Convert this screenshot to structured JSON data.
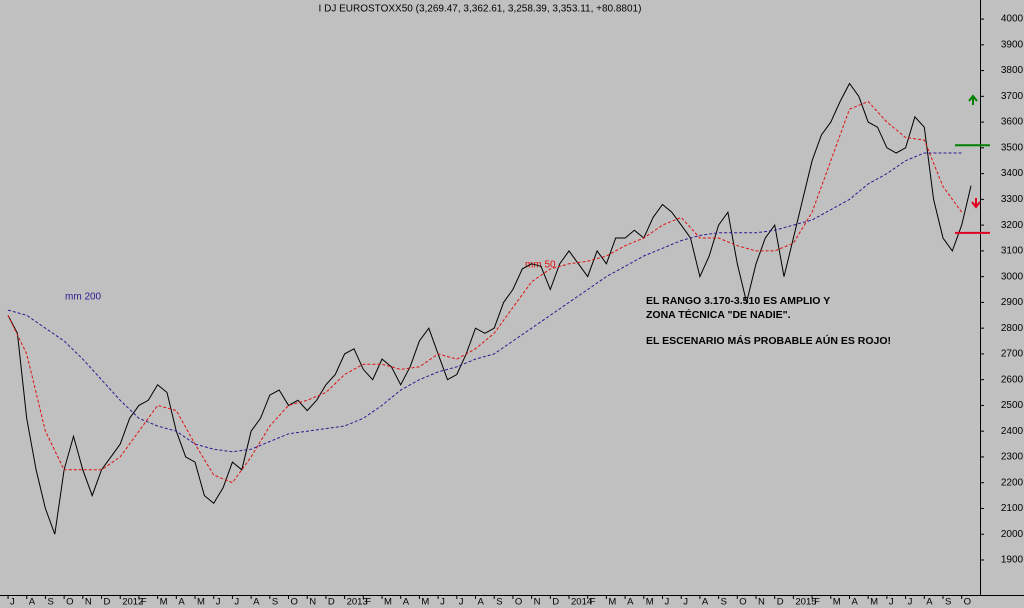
{
  "chart_data": {
    "type": "line",
    "title": "I DJ EUROSTOXX50 (3,269.47, 3,362.61, 3,258.39, 3,353.11, +80.8801)",
    "annotations": [
      "EL RANGO 3.170-3.510 ES AMPLIO Y",
      "ZONA TÉCNICA \"DE NADIE\".",
      "EL ESCENARIO MÁS PROBABLE AÚN ES ROJO!"
    ],
    "xlim": [
      -0.43,
      51.98
    ],
    "xticks": [
      {
        "value": 0,
        "label": "J"
      },
      {
        "value": 1,
        "label": "A"
      },
      {
        "value": 2,
        "label": "S"
      },
      {
        "value": 3,
        "label": "O"
      },
      {
        "value": 4,
        "label": "N"
      },
      {
        "value": 5,
        "label": "D"
      },
      {
        "value": 6,
        "label": "2012"
      },
      {
        "value": 7,
        "label": "F"
      },
      {
        "value": 8,
        "label": "M"
      },
      {
        "value": 9,
        "label": "A"
      },
      {
        "value": 10,
        "label": "M"
      },
      {
        "value": 11,
        "label": "J"
      },
      {
        "value": 12,
        "label": "J"
      },
      {
        "value": 13,
        "label": "A"
      },
      {
        "value": 14,
        "label": "S"
      },
      {
        "value": 15,
        "label": "O"
      },
      {
        "value": 16,
        "label": "N"
      },
      {
        "value": 17,
        "label": "D"
      },
      {
        "value": 18,
        "label": "2013"
      },
      {
        "value": 19,
        "label": "F"
      },
      {
        "value": 20,
        "label": "M"
      },
      {
        "value": 21,
        "label": "A"
      },
      {
        "value": 22,
        "label": "M"
      },
      {
        "value": 23,
        "label": "J"
      },
      {
        "value": 24,
        "label": "J"
      },
      {
        "value": 25,
        "label": "A"
      },
      {
        "value": 26,
        "label": "S"
      },
      {
        "value": 27,
        "label": "O"
      },
      {
        "value": 28,
        "label": "N"
      },
      {
        "value": 29,
        "label": "D"
      },
      {
        "value": 30,
        "label": "2014"
      },
      {
        "value": 31,
        "label": "F"
      },
      {
        "value": 32,
        "label": "M"
      },
      {
        "value": 33,
        "label": "A"
      },
      {
        "value": 34,
        "label": "M"
      },
      {
        "value": 35,
        "label": "J"
      },
      {
        "value": 36,
        "label": "J"
      },
      {
        "value": 37,
        "label": "A"
      },
      {
        "value": 38,
        "label": "S"
      },
      {
        "value": 39,
        "label": "O"
      },
      {
        "value": 40,
        "label": "N"
      },
      {
        "value": 41,
        "label": "D"
      },
      {
        "value": 42,
        "label": "2015"
      },
      {
        "value": 43,
        "label": "F"
      },
      {
        "value": 44,
        "label": "M"
      },
      {
        "value": 45,
        "label": "A"
      },
      {
        "value": 46,
        "label": "M"
      },
      {
        "value": 47,
        "label": "J"
      },
      {
        "value": 48,
        "label": "J"
      },
      {
        "value": 49,
        "label": "A"
      },
      {
        "value": 50,
        "label": "S"
      },
      {
        "value": 51,
        "label": "O"
      }
    ],
    "ylim": [
      1764,
      4074
    ],
    "yticks": [
      1900,
      2000,
      2100,
      2200,
      2300,
      2400,
      2500,
      2600,
      2700,
      2800,
      2900,
      3000,
      3100,
      3200,
      3300,
      3400,
      3500,
      3600,
      3700,
      3800,
      3900,
      4000
    ],
    "series": [
      {
        "color": "#000000",
        "dash": "none",
        "x": [
          0,
          0.5,
          1,
          1.5,
          2,
          2.5,
          3,
          3.5,
          4,
          4.5,
          5,
          5.5,
          6,
          6.5,
          7,
          7.5,
          8,
          8.5,
          9,
          9.5,
          10,
          10.5,
          11,
          11.5,
          12,
          12.5,
          13,
          13.5,
          14,
          14.5,
          15,
          15.5,
          16,
          16.5,
          17,
          17.5,
          18,
          18.5,
          19,
          19.5,
          20,
          20.5,
          21,
          21.5,
          22,
          22.5,
          23,
          23.5,
          24,
          24.5,
          25,
          25.5,
          26,
          26.5,
          27,
          27.5,
          28,
          28.5,
          29,
          29.5,
          30,
          30.5,
          31,
          31.5,
          32,
          32.5,
          33,
          33.5,
          34,
          34.5,
          35,
          35.5,
          36,
          36.5,
          37,
          37.5,
          38,
          38.5,
          39,
          39.5,
          40,
          40.5,
          41,
          41.5,
          42,
          42.5,
          43,
          43.5,
          44,
          44.5,
          45,
          45.5,
          46,
          46.5,
          47,
          47.5,
          48,
          48.5,
          49,
          49.5,
          50,
          50.5,
          51,
          51.5
        ],
        "values": [
          2850,
          2780,
          2450,
          2250,
          2100,
          2000,
          2250,
          2380,
          2250,
          2150,
          2250,
          2300,
          2350,
          2450,
          2500,
          2520,
          2580,
          2550,
          2400,
          2300,
          2280,
          2150,
          2120,
          2180,
          2280,
          2250,
          2400,
          2450,
          2540,
          2560,
          2500,
          2520,
          2480,
          2520,
          2580,
          2620,
          2700,
          2720,
          2640,
          2600,
          2680,
          2650,
          2580,
          2650,
          2750,
          2800,
          2700,
          2600,
          2620,
          2700,
          2800,
          2780,
          2800,
          2900,
          2950,
          3030,
          3050,
          3040,
          2950,
          3050,
          3100,
          3050,
          3000,
          3100,
          3050,
          3150,
          3150,
          3180,
          3150,
          3230,
          3280,
          3250,
          3200,
          3150,
          3000,
          3080,
          3200,
          3250,
          3050,
          2900,
          3050,
          3150,
          3200,
          3000,
          3150,
          3300,
          3450,
          3550,
          3600,
          3680,
          3750,
          3700,
          3600,
          3580,
          3500,
          3480,
          3500,
          3620,
          3580,
          3300,
          3150,
          3100,
          3200,
          3353
        ]
      },
      {
        "name": "mm 50",
        "color": "#e01010",
        "dash": "3,2",
        "x": [
          0,
          1,
          2,
          3,
          4,
          5,
          6,
          7,
          8,
          9,
          10,
          11,
          12,
          13,
          14,
          15,
          16,
          17,
          18,
          19,
          20,
          21,
          22,
          23,
          24,
          25,
          26,
          27,
          28,
          29,
          30,
          31,
          32,
          33,
          34,
          35,
          36,
          37,
          38,
          39,
          40,
          41,
          42,
          43,
          44,
          45,
          46,
          47,
          48,
          49,
          50,
          51
        ],
        "values": [
          2850,
          2700,
          2400,
          2250,
          2250,
          2250,
          2300,
          2400,
          2500,
          2480,
          2350,
          2230,
          2200,
          2300,
          2420,
          2500,
          2520,
          2550,
          2620,
          2660,
          2660,
          2640,
          2650,
          2700,
          2680,
          2720,
          2780,
          2880,
          2980,
          3030,
          3050,
          3060,
          3080,
          3120,
          3150,
          3200,
          3230,
          3150,
          3150,
          3120,
          3100,
          3100,
          3130,
          3250,
          3450,
          3650,
          3680,
          3600,
          3540,
          3530,
          3350,
          3250
        ]
      },
      {
        "name": "mm 200",
        "color": "#301890",
        "dash": "3,2",
        "x": [
          0,
          1,
          2,
          3,
          4,
          5,
          6,
          7,
          8,
          9,
          10,
          11,
          12,
          13,
          14,
          15,
          16,
          17,
          18,
          19,
          20,
          21,
          22,
          23,
          24,
          25,
          26,
          27,
          28,
          29,
          30,
          31,
          32,
          33,
          34,
          35,
          36,
          37,
          38,
          39,
          40,
          41,
          42,
          43,
          44,
          45,
          46,
          47,
          48,
          49,
          50,
          51
        ],
        "values": [
          2870,
          2850,
          2800,
          2750,
          2680,
          2600,
          2520,
          2450,
          2420,
          2400,
          2350,
          2330,
          2320,
          2330,
          2360,
          2390,
          2400,
          2410,
          2420,
          2450,
          2500,
          2560,
          2600,
          2630,
          2650,
          2680,
          2700,
          2750,
          2800,
          2850,
          2900,
          2950,
          3000,
          3040,
          3080,
          3110,
          3140,
          3160,
          3170,
          3170,
          3170,
          3180,
          3200,
          3220,
          3260,
          3300,
          3360,
          3400,
          3450,
          3480,
          3480,
          3480
        ]
      }
    ],
    "levels": [
      {
        "value": 3510,
        "color": "#008000"
      },
      {
        "value": 3170,
        "color": "#e00020"
      }
    ]
  }
}
